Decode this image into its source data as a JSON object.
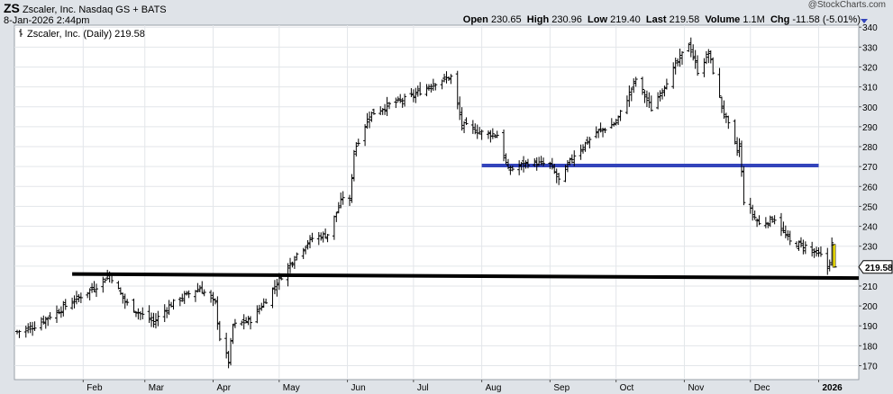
{
  "header": {
    "symbol": "ZS",
    "company": "Zscaler, Inc.",
    "exchange": "Nasdaq GS + BATS",
    "datetime": "8-Jan-2026 2:44pm",
    "watermark": "@StockCharts.com",
    "legend": "Zscaler, Inc. (Daily) 219.58",
    "quote": {
      "open_label": "Open",
      "open": "230.65",
      "high_label": "High",
      "high": "230.96",
      "low_label": "Low",
      "low": "219.40",
      "last_label": "Last",
      "last": "219.58",
      "volume_label": "Volume",
      "volume": "1.1M",
      "chg_label": "Chg",
      "chg": "-11.58 (-5.01%)"
    }
  },
  "chart_data": {
    "type": "ohlc-bar",
    "ylim": [
      163,
      341
    ],
    "yticks": [
      170,
      180,
      190,
      200,
      210,
      220,
      230,
      240,
      250,
      260,
      270,
      280,
      290,
      300,
      310,
      320,
      330,
      340
    ],
    "last_price_label": "219.58",
    "last_price": 219.58,
    "month_labels": [
      {
        "label": "Feb",
        "date": "2025-02-01"
      },
      {
        "label": "Mar",
        "date": "2025-03-01"
      },
      {
        "label": "Apr",
        "date": "2025-04-01"
      },
      {
        "label": "May",
        "date": "2025-05-01"
      },
      {
        "label": "Jun",
        "date": "2025-06-01"
      },
      {
        "label": "Jul",
        "date": "2025-07-01"
      },
      {
        "label": "Aug",
        "date": "2025-08-01"
      },
      {
        "label": "Sep",
        "date": "2025-09-01"
      },
      {
        "label": "Oct",
        "date": "2025-10-01"
      },
      {
        "label": "Nov",
        "date": "2025-11-01"
      },
      {
        "label": "Dec",
        "date": "2025-12-01"
      },
      {
        "label": "2026",
        "date": "2026-01-01",
        "bold": true
      }
    ],
    "trendlines": [
      {
        "name": "support",
        "color": "#000000",
        "start": "2025-01-27",
        "end": "2026-01-31",
        "y_start": 216,
        "y_end": 214
      },
      {
        "name": "resistance",
        "color": "#3344bb",
        "start": "2025-08-01",
        "end": "2026-01-01",
        "y_start": 270.5,
        "y_end": 270.5
      }
    ],
    "anchors": [
      {
        "date": "2025-01-02",
        "close": 187
      },
      {
        "date": "2025-01-10",
        "close": 190
      },
      {
        "date": "2025-01-17",
        "close": 195
      },
      {
        "date": "2025-01-24",
        "close": 200
      },
      {
        "date": "2025-01-31",
        "close": 205
      },
      {
        "date": "2025-02-07",
        "close": 210
      },
      {
        "date": "2025-02-13",
        "close": 216
      },
      {
        "date": "2025-02-20",
        "close": 202
      },
      {
        "date": "2025-02-27",
        "close": 196
      },
      {
        "date": "2025-03-05",
        "close": 192
      },
      {
        "date": "2025-03-12",
        "close": 200
      },
      {
        "date": "2025-03-19",
        "close": 205
      },
      {
        "date": "2025-03-26",
        "close": 209
      },
      {
        "date": "2025-04-02",
        "close": 201
      },
      {
        "date": "2025-04-04",
        "close": 184
      },
      {
        "date": "2025-04-08",
        "close": 172
      },
      {
        "date": "2025-04-10",
        "close": 190
      },
      {
        "date": "2025-04-18",
        "close": 193
      },
      {
        "date": "2025-04-25",
        "close": 203
      },
      {
        "date": "2025-05-02",
        "close": 215
      },
      {
        "date": "2025-05-09",
        "close": 226
      },
      {
        "date": "2025-05-16",
        "close": 234
      },
      {
        "date": "2025-05-23",
        "close": 236
      },
      {
        "date": "2025-05-30",
        "close": 255
      },
      {
        "date": "2025-06-02",
        "close": 252
      },
      {
        "date": "2025-06-04",
        "close": 278
      },
      {
        "date": "2025-06-11",
        "close": 296
      },
      {
        "date": "2025-06-20",
        "close": 301
      },
      {
        "date": "2025-06-30",
        "close": 305
      },
      {
        "date": "2025-07-10",
        "close": 312
      },
      {
        "date": "2025-07-18",
        "close": 315
      },
      {
        "date": "2025-07-23",
        "close": 291
      },
      {
        "date": "2025-08-01",
        "close": 287
      },
      {
        "date": "2025-08-08",
        "close": 286
      },
      {
        "date": "2025-08-13",
        "close": 268
      },
      {
        "date": "2025-08-22",
        "close": 272
      },
      {
        "date": "2025-09-01",
        "close": 271
      },
      {
        "date": "2025-09-05",
        "close": 263
      },
      {
        "date": "2025-09-12",
        "close": 276
      },
      {
        "date": "2025-09-22",
        "close": 287
      },
      {
        "date": "2025-10-01",
        "close": 292
      },
      {
        "date": "2025-10-10",
        "close": 314
      },
      {
        "date": "2025-10-17",
        "close": 299
      },
      {
        "date": "2025-10-24",
        "close": 313
      },
      {
        "date": "2025-11-03",
        "close": 332
      },
      {
        "date": "2025-11-07",
        "close": 318
      },
      {
        "date": "2025-11-12",
        "close": 327
      },
      {
        "date": "2025-11-18",
        "close": 300
      },
      {
        "date": "2025-11-25",
        "close": 278
      },
      {
        "date": "2025-11-26",
        "close": 281
      },
      {
        "date": "2025-11-28",
        "close": 253
      },
      {
        "date": "2025-12-05",
        "close": 241
      },
      {
        "date": "2025-12-12",
        "close": 244
      },
      {
        "date": "2025-12-19",
        "close": 232
      },
      {
        "date": "2025-12-26",
        "close": 230
      },
      {
        "date": "2026-01-02",
        "close": 225
      },
      {
        "date": "2026-01-05",
        "close": 219
      },
      {
        "date": "2026-01-06",
        "close": 223
      },
      {
        "date": "2026-01-07",
        "close": 231
      },
      {
        "date": "2026-01-08",
        "close": 219.58
      }
    ],
    "last_bar": {
      "date": "2026-01-08",
      "open": 230.65,
      "high": 230.96,
      "low": 219.4,
      "close": 219.58,
      "color": "#f0e000"
    },
    "grid": true,
    "legend_position": "top-left"
  }
}
